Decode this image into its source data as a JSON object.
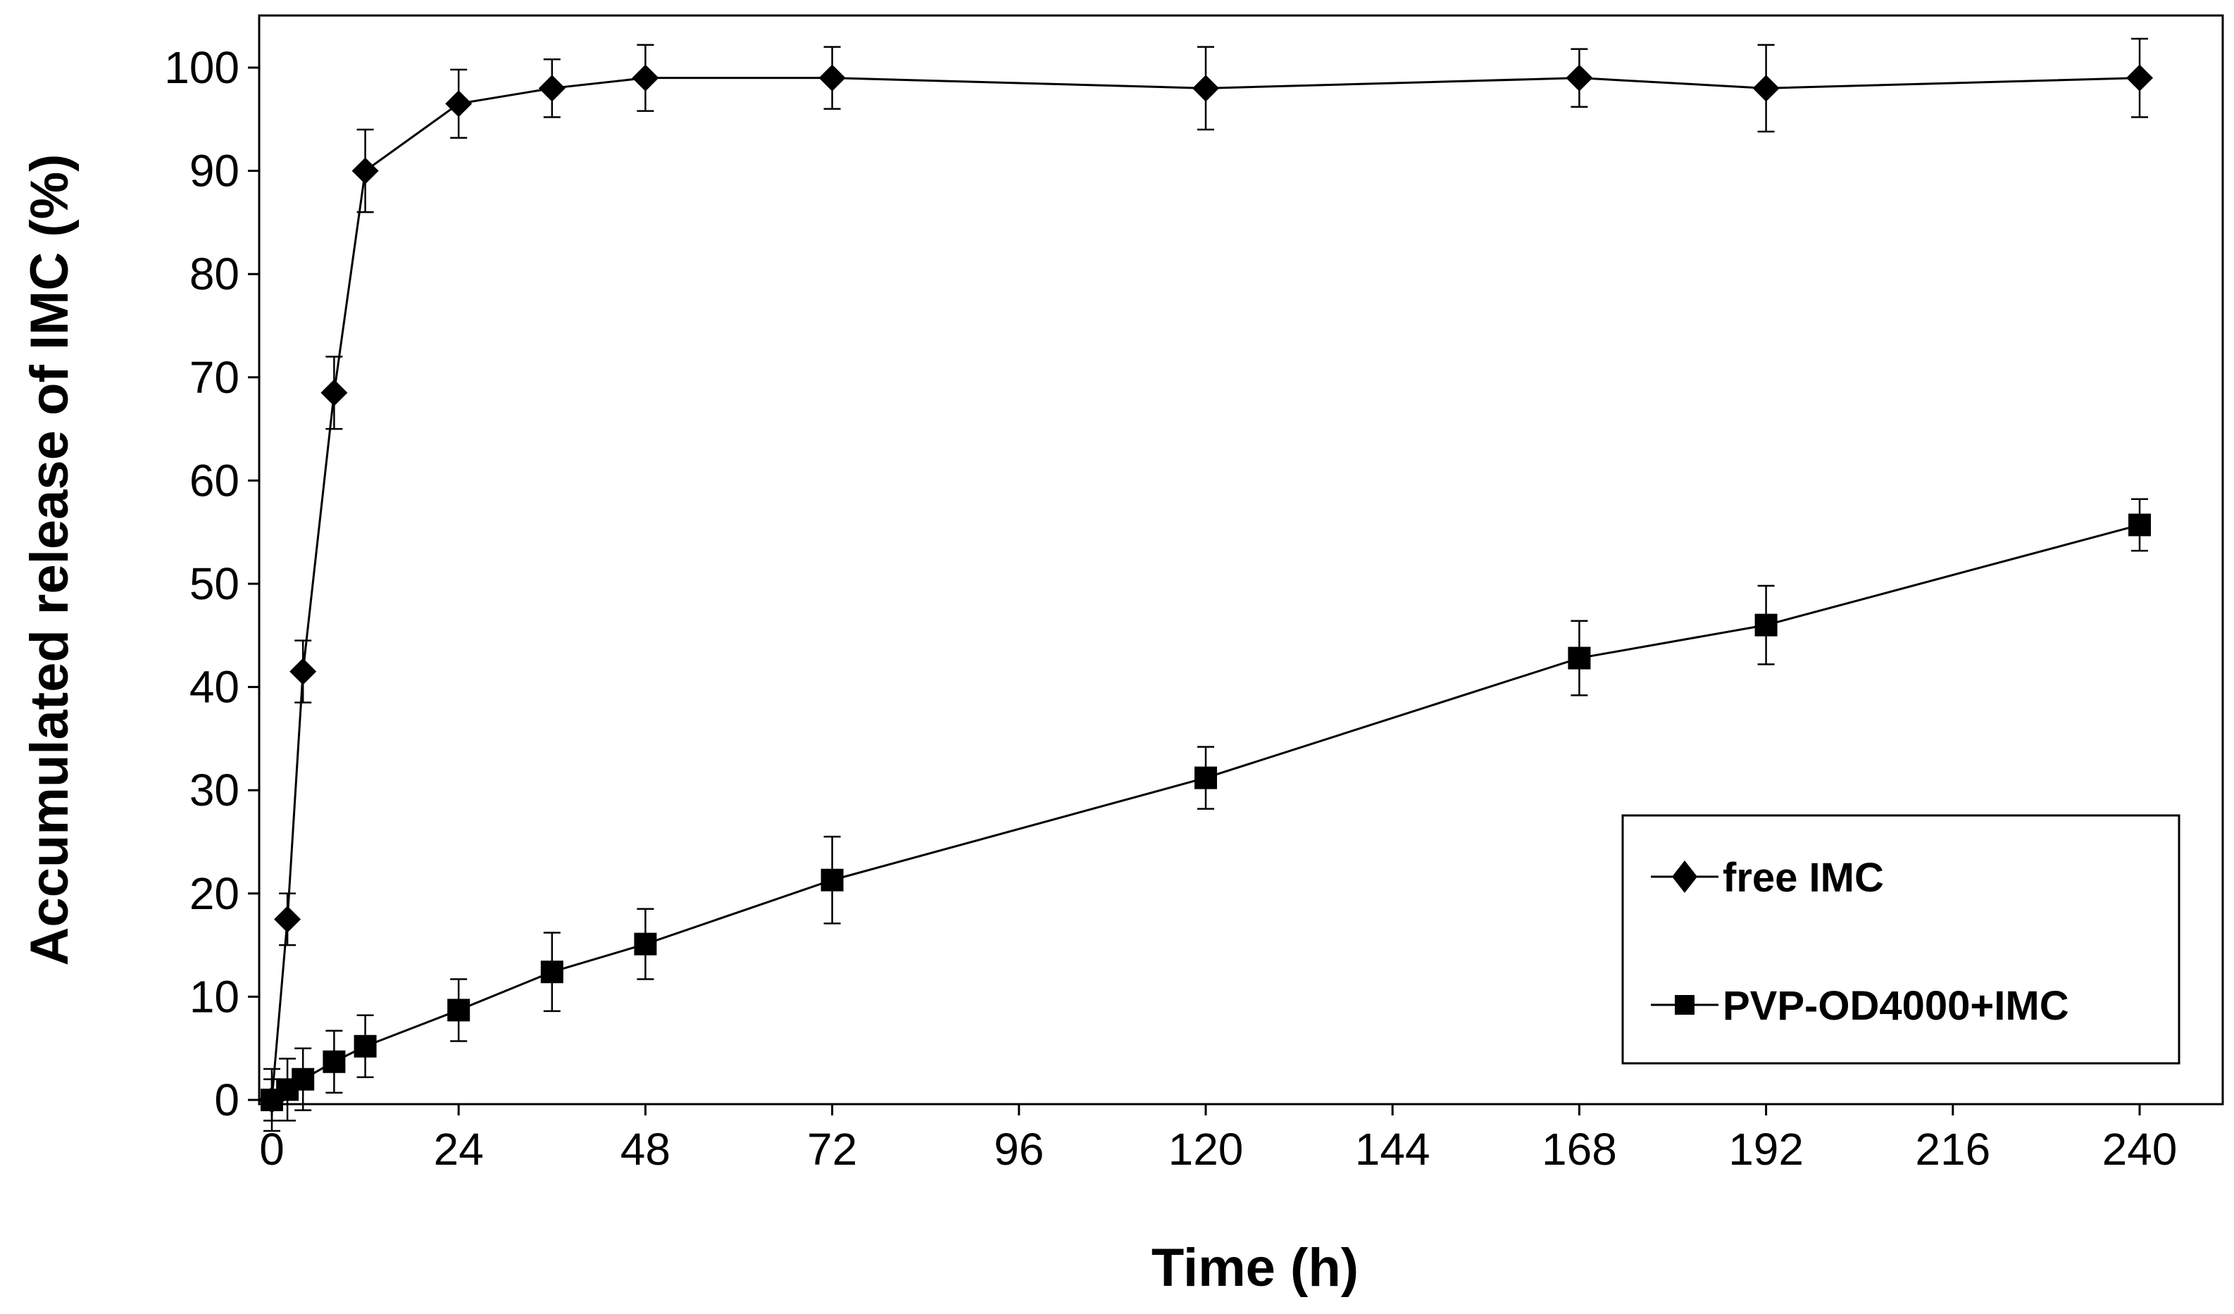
{
  "chart_data": {
    "type": "line",
    "title": "",
    "xlabel": "Time (h)",
    "ylabel": "Accumulated release of IMC (%)",
    "xlim": [
      0,
      240
    ],
    "ylim": [
      0,
      100
    ],
    "xticks": [
      0,
      24,
      48,
      72,
      96,
      120,
      144,
      168,
      192,
      216,
      240
    ],
    "yticks": [
      0,
      10,
      20,
      30,
      40,
      50,
      60,
      70,
      80,
      90,
      100
    ],
    "grid": false,
    "legend_position": "bottom-right",
    "series": [
      {
        "name": "free IMC",
        "marker": "diamond",
        "x": [
          0,
          2,
          4,
          8,
          12,
          24,
          36,
          48,
          72,
          120,
          168,
          192,
          240
        ],
        "y": [
          0,
          17.5,
          41.5,
          68.5,
          90,
          96.5,
          98,
          99,
          99,
          98,
          99,
          98,
          99
        ],
        "error": [
          3,
          2.5,
          3,
          3.5,
          4,
          3.3,
          2.8,
          3.2,
          3,
          4,
          2.8,
          4.2,
          3.8
        ]
      },
      {
        "name": "PVP-OD4000+IMC",
        "marker": "square",
        "x": [
          0,
          2,
          4,
          8,
          12,
          24,
          36,
          48,
          72,
          120,
          168,
          192,
          240
        ],
        "y": [
          0,
          1,
          2,
          3.7,
          5.2,
          8.7,
          12.4,
          15.1,
          21.3,
          31.2,
          42.8,
          46,
          55.7
        ],
        "error": [
          2,
          3,
          3,
          3,
          3,
          3,
          3.8,
          3.4,
          4.2,
          3,
          3.6,
          3.8,
          2.5
        ]
      }
    ]
  }
}
